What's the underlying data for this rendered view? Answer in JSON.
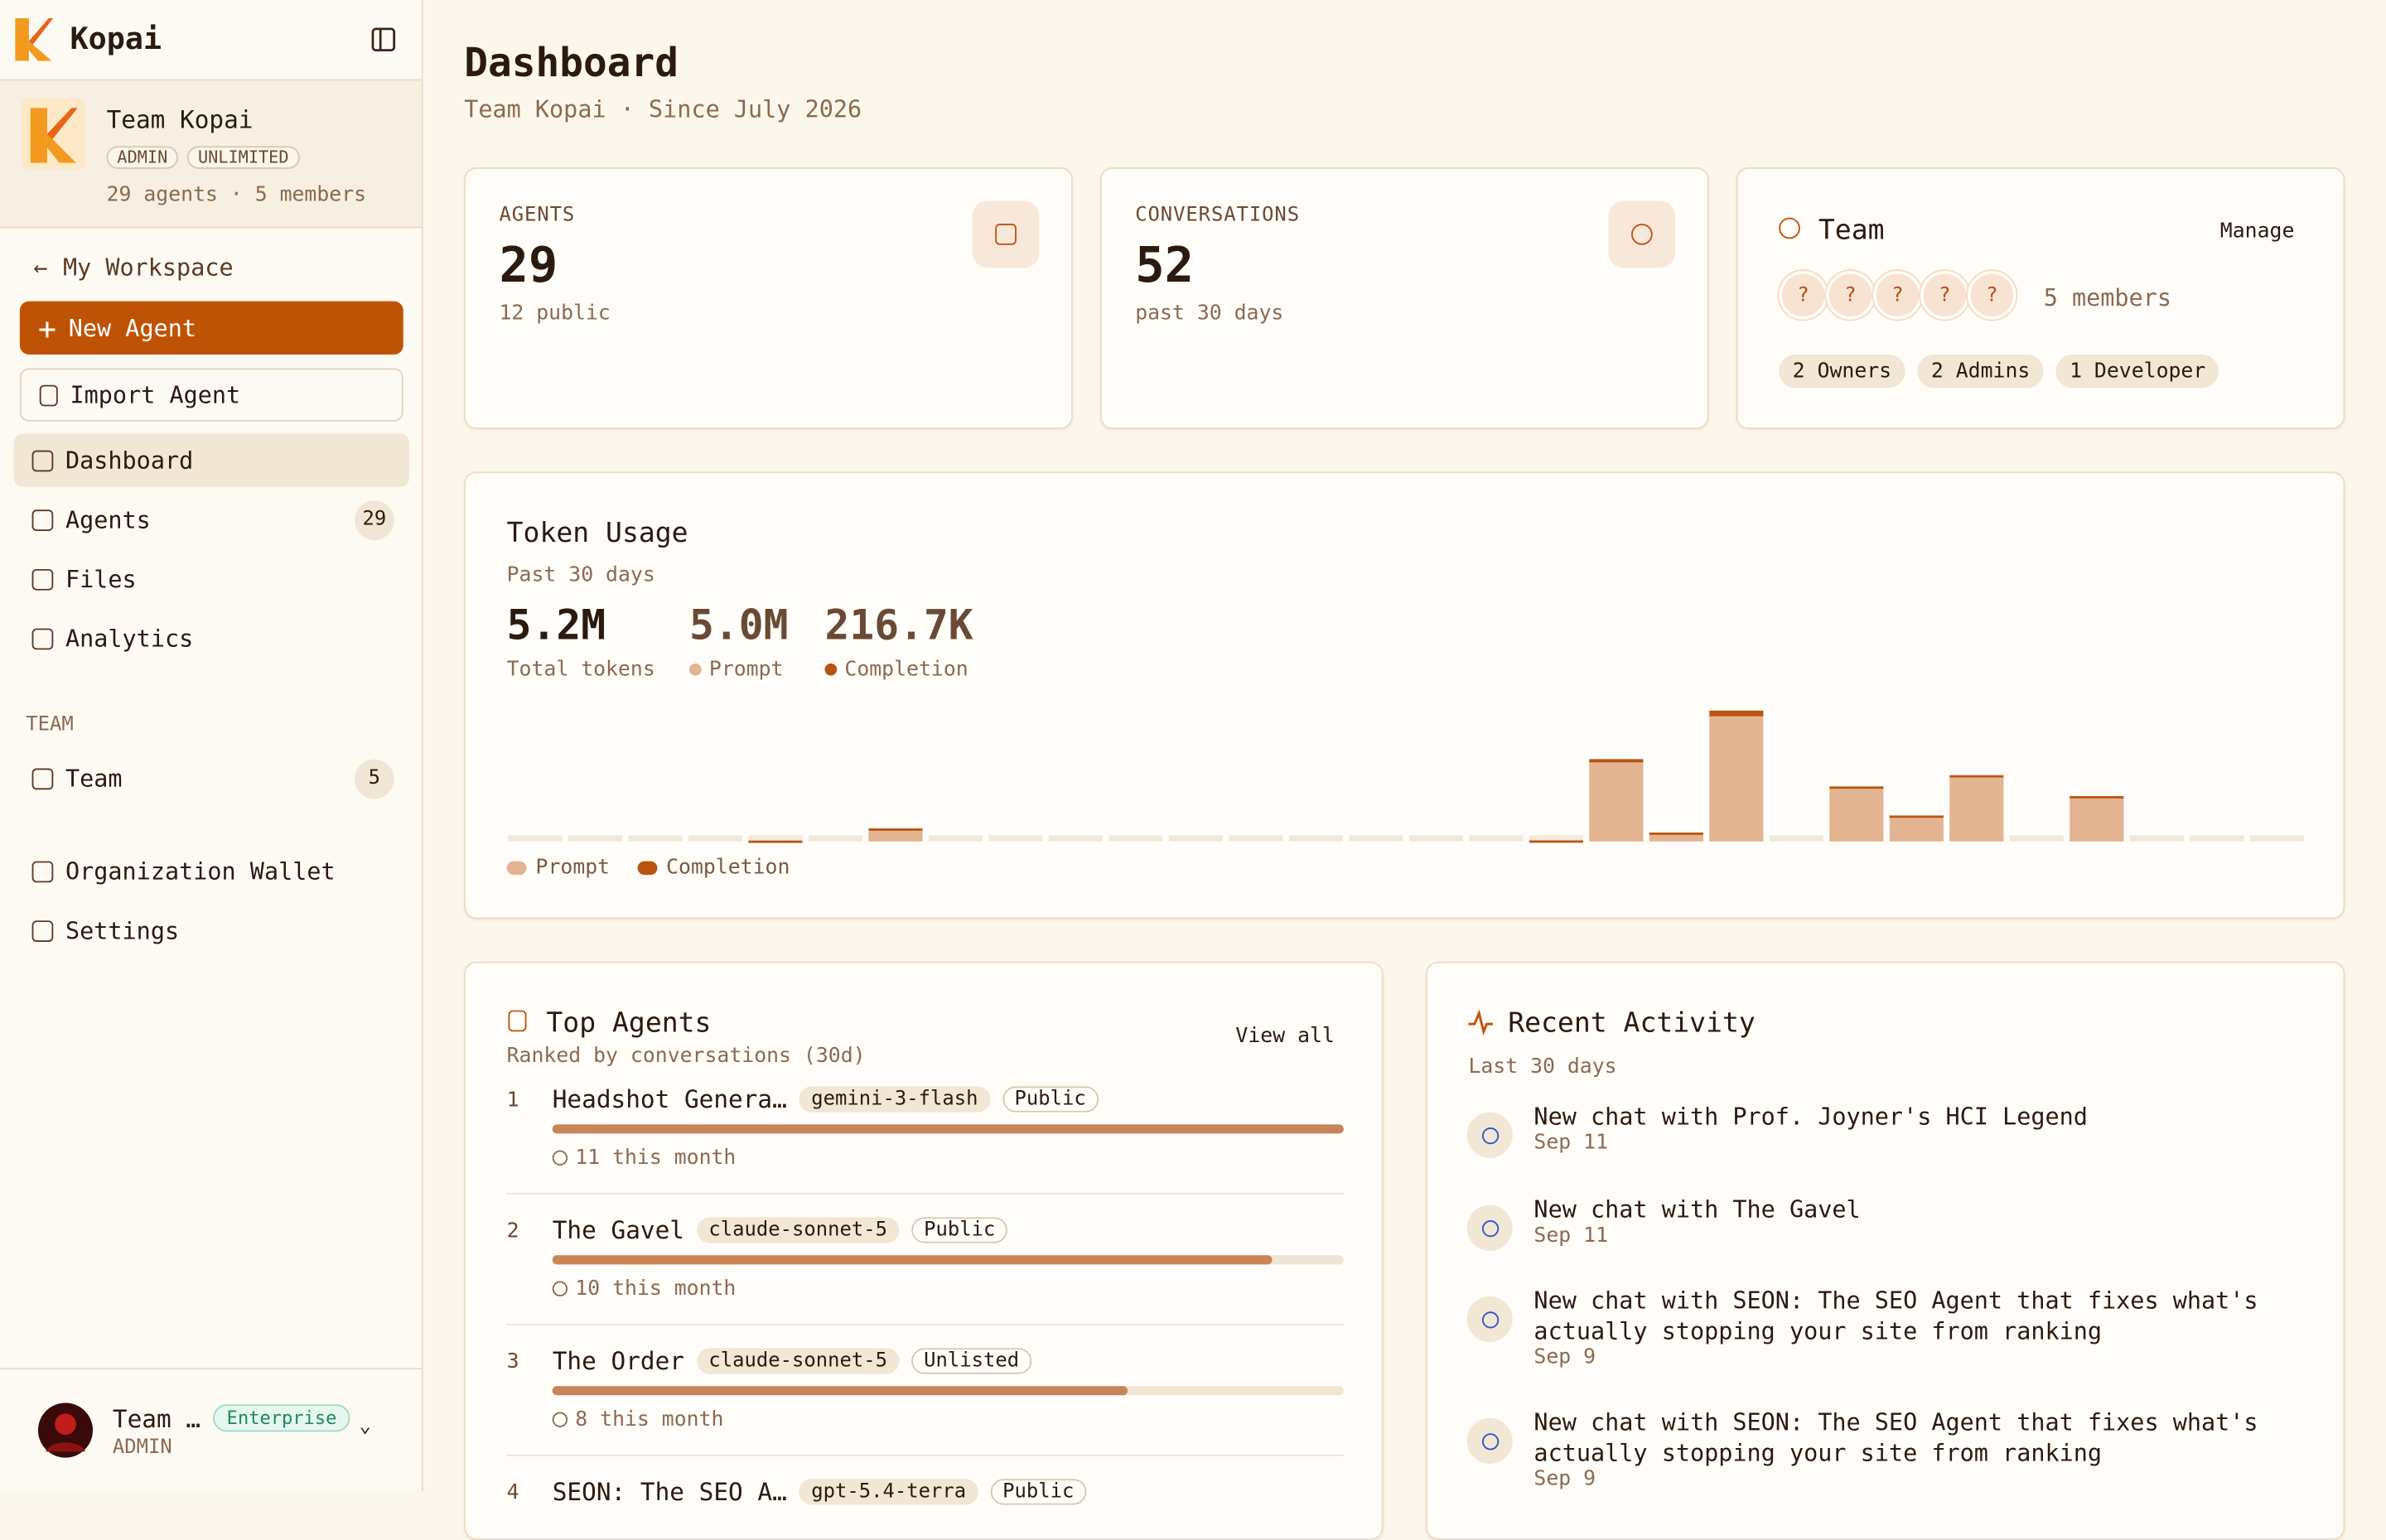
{
  "sidebar": {
    "brand": "Kopai",
    "team": {
      "name": "Team Kopai",
      "badges": [
        "ADMIN",
        "UNLIMITED"
      ],
      "meta": "29 agents · 5 members"
    },
    "back": "My Workspace",
    "new_agent": "New Agent",
    "import_agent": "Import Agent",
    "nav": [
      {
        "label": "Dashboard"
      },
      {
        "label": "Agents",
        "count": 29
      },
      {
        "label": "Files"
      },
      {
        "label": "Analytics"
      }
    ],
    "team_section": "TEAM",
    "team_nav": [
      {
        "label": "Team",
        "count": 5
      }
    ],
    "bottom_nav": [
      {
        "label": "Organization Wallet"
      },
      {
        "label": "Settings"
      }
    ],
    "user": {
      "name": "Team …",
      "plan": "Enterprise",
      "role": "ADMIN"
    }
  },
  "header": {
    "title": "Dashboard",
    "subtitle": "Team Kopai · Since July 2026"
  },
  "stats": [
    {
      "label": "AGENTS",
      "value": 29,
      "sub": "12 public"
    },
    {
      "label": "CONVERSATIONS",
      "value": 52,
      "sub": "past 30 days"
    }
  ],
  "team_card": {
    "title": "Team",
    "action": "Manage",
    "avatars": [
      "?",
      "?",
      "?",
      "?",
      "?"
    ],
    "members": "5 members",
    "roles": [
      "2 Owners",
      "2 Admins",
      "1 Developer"
    ]
  },
  "chart_data": {
    "type": "bar",
    "stacked": true,
    "title": "Token Usage",
    "subtitle": "Past 30 days",
    "summary": [
      {
        "value": "5.2M",
        "label": "Total tokens"
      },
      {
        "value": "5.0M",
        "label": "Prompt"
      },
      {
        "value": "216.7K",
        "label": "Completion"
      }
    ],
    "categories": [
      null,
      null,
      null,
      null,
      null,
      null,
      null,
      null,
      null,
      null,
      null,
      null,
      null,
      null,
      null,
      null,
      null,
      null,
      null,
      null,
      null,
      null,
      null,
      null,
      null,
      null,
      null,
      null,
      null,
      null
    ],
    "series": [
      {
        "name": "Prompt",
        "color": "#e3b491",
        "values": [
          0,
          0,
          0,
          0,
          0,
          0,
          150000,
          0,
          0,
          0,
          0,
          0,
          0,
          0,
          0,
          0,
          0,
          0,
          960000,
          90000,
          1520000,
          0,
          650000,
          310000,
          780000,
          0,
          540000,
          0,
          0,
          0
        ]
      },
      {
        "name": "Completion",
        "color": "#b9550f",
        "values": [
          0,
          0,
          0,
          0,
          10000,
          0,
          8000,
          0,
          0,
          0,
          0,
          0,
          0,
          0,
          0,
          0,
          0,
          12000,
          40000,
          18000,
          70000,
          0,
          18000,
          5000,
          25000,
          0,
          10700,
          0,
          0,
          0
        ]
      }
    ]
  },
  "top_agents": {
    "title": "Top Agents",
    "subtitle": "Ranked by conversations (30d)",
    "action": "View all",
    "items": [
      {
        "rank": 1,
        "name": "Headshot Genera…",
        "model": "gemini-3-flash",
        "visibility": "Public",
        "conversations": 11,
        "conversations_label": "11 this month"
      },
      {
        "rank": 2,
        "name": "The Gavel",
        "model": "claude-sonnet-5",
        "visibility": "Public",
        "conversations": 10,
        "conversations_label": "10 this month"
      },
      {
        "rank": 3,
        "name": "The Order",
        "model": "claude-sonnet-5",
        "visibility": "Unlisted",
        "conversations": 8,
        "conversations_label": "8 this month"
      },
      {
        "rank": 4,
        "name": "SEON: The SEO A…",
        "model": "gpt-5.4-terra",
        "visibility": "Public"
      }
    ]
  },
  "recent_activity": {
    "title": "Recent Activity",
    "subtitle": "Last 30 days",
    "items": [
      {
        "text": "New chat with Prof. Joyner's HCI Legend",
        "date": "Sep 11"
      },
      {
        "text": "New chat with The Gavel",
        "date": "Sep 11"
      },
      {
        "text": "New chat with SEON: The SEO Agent that fixes what's actually stopping your site from ranking",
        "date": "Sep 9"
      },
      {
        "text": "New chat with SEON: The SEO Agent that fixes what's actually stopping your site from ranking",
        "date": "Sep 9"
      }
    ]
  }
}
